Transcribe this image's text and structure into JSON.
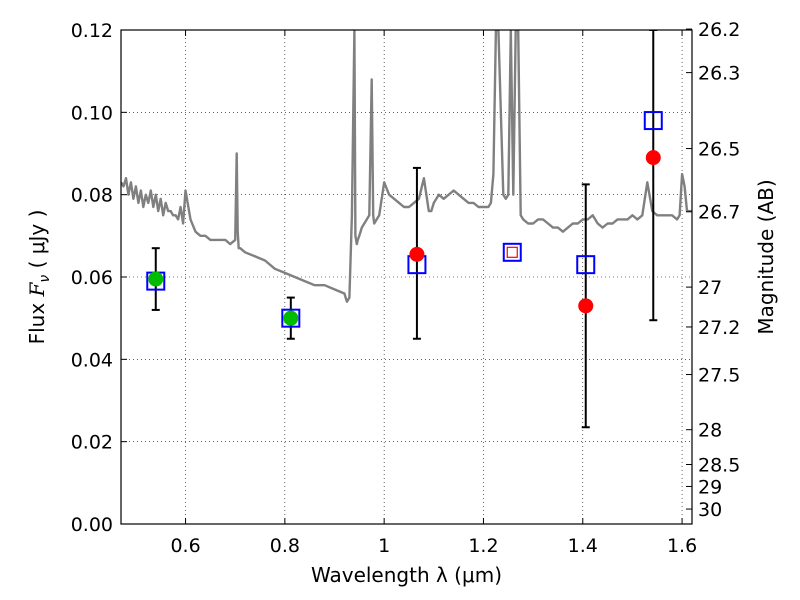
{
  "chart_data": {
    "type": "scatter",
    "xlabel": "Wavelength  λ (μm)",
    "ylabel": "Flux  F_ν  ( μJy )",
    "ylabel_parts": {
      "prefix": "Flux  ",
      "symbol": "F",
      "subscript": "ν",
      "suffix": "  (  μJy )"
    },
    "y2label": "Magnitude (AB)",
    "xlim": [
      0.47,
      1.62
    ],
    "ylim": [
      0.0,
      0.12
    ],
    "x_ticks": [
      0.6,
      0.8,
      1.0,
      1.2,
      1.4,
      1.6
    ],
    "x_tick_labels": [
      "0.6",
      "0.8",
      "1",
      "1.2",
      "1.4",
      "1.6"
    ],
    "y_ticks": [
      0.0,
      0.02,
      0.04,
      0.06,
      0.08,
      0.1,
      0.12
    ],
    "y_tick_labels": [
      "0.00",
      "0.02",
      "0.04",
      "0.06",
      "0.08",
      "0.10",
      "0.12"
    ],
    "y2_ticks": [
      {
        "label": "26.2",
        "mag": 26.2
      },
      {
        "label": "26.3",
        "mag": 26.3
      },
      {
        "label": "26.5",
        "mag": 26.5
      },
      {
        "label": "26.7",
        "mag": 26.7
      },
      {
        "label": "27",
        "mag": 27.0
      },
      {
        "label": "27.2",
        "mag": 27.2
      },
      {
        "label": "27.5",
        "mag": 27.5
      },
      {
        "label": "28",
        "mag": 28.0
      },
      {
        "label": "28.5",
        "mag": 28.5
      },
      {
        "label": "29",
        "mag": 29.0
      },
      {
        "label": "30",
        "mag": 30.0
      }
    ],
    "grid": true,
    "colors": {
      "model": "#808080",
      "observed": "#0000ff",
      "detection": "#00bb00",
      "prediction": "#ff0000",
      "errorbar": "#000000",
      "grid": "#000000"
    },
    "series": [
      {
        "name": "model spectrum",
        "kind": "line",
        "x": [
          0.47,
          0.475,
          0.48,
          0.485,
          0.49,
          0.495,
          0.5,
          0.505,
          0.51,
          0.515,
          0.52,
          0.525,
          0.53,
          0.535,
          0.54,
          0.545,
          0.55,
          0.555,
          0.56,
          0.565,
          0.57,
          0.575,
          0.58,
          0.585,
          0.59,
          0.595,
          0.6,
          0.61,
          0.62,
          0.63,
          0.64,
          0.65,
          0.66,
          0.67,
          0.68,
          0.69,
          0.7,
          0.703,
          0.705,
          0.707,
          0.71,
          0.72,
          0.74,
          0.76,
          0.78,
          0.8,
          0.82,
          0.84,
          0.86,
          0.88,
          0.9,
          0.92,
          0.925,
          0.93,
          0.935,
          0.94,
          0.942,
          0.945,
          0.947,
          0.95,
          0.955,
          0.96,
          0.965,
          0.97,
          0.975,
          0.978,
          0.98,
          0.985,
          0.99,
          1.0,
          1.01,
          1.02,
          1.03,
          1.04,
          1.05,
          1.06,
          1.07,
          1.08,
          1.09,
          1.095,
          1.1,
          1.11,
          1.12,
          1.13,
          1.14,
          1.15,
          1.16,
          1.17,
          1.18,
          1.19,
          1.2,
          1.21,
          1.215,
          1.22,
          1.225,
          1.23,
          1.24,
          1.245,
          1.25,
          1.255,
          1.26,
          1.265,
          1.27,
          1.275,
          1.28,
          1.29,
          1.3,
          1.31,
          1.32,
          1.33,
          1.34,
          1.35,
          1.36,
          1.37,
          1.38,
          1.39,
          1.4,
          1.41,
          1.42,
          1.43,
          1.44,
          1.45,
          1.46,
          1.47,
          1.48,
          1.49,
          1.5,
          1.51,
          1.52,
          1.53,
          1.54,
          1.55,
          1.56,
          1.57,
          1.58,
          1.59,
          1.595,
          1.6,
          1.605,
          1.61,
          1.62
        ],
        "y": [
          0.083,
          0.082,
          0.084,
          0.08,
          0.083,
          0.079,
          0.082,
          0.078,
          0.081,
          0.077,
          0.08,
          0.078,
          0.081,
          0.077,
          0.08,
          0.076,
          0.079,
          0.075,
          0.078,
          0.076,
          0.076,
          0.075,
          0.075,
          0.074,
          0.077,
          0.073,
          0.081,
          0.074,
          0.071,
          0.07,
          0.07,
          0.069,
          0.069,
          0.069,
          0.069,
          0.068,
          0.069,
          0.09,
          0.071,
          0.067,
          0.067,
          0.066,
          0.065,
          0.064,
          0.062,
          0.061,
          0.06,
          0.059,
          0.058,
          0.058,
          0.057,
          0.056,
          0.054,
          0.055,
          0.075,
          0.12,
          0.07,
          0.068,
          0.069,
          0.07,
          0.072,
          0.073,
          0.074,
          0.075,
          0.108,
          0.075,
          0.073,
          0.074,
          0.075,
          0.083,
          0.08,
          0.079,
          0.078,
          0.077,
          0.077,
          0.078,
          0.079,
          0.084,
          0.076,
          0.076,
          0.078,
          0.08,
          0.079,
          0.08,
          0.081,
          0.08,
          0.079,
          0.078,
          0.078,
          0.077,
          0.077,
          0.077,
          0.078,
          0.085,
          0.12,
          0.12,
          0.08,
          0.079,
          0.08,
          0.12,
          0.08,
          0.12,
          0.12,
          0.075,
          0.074,
          0.073,
          0.073,
          0.074,
          0.074,
          0.073,
          0.072,
          0.072,
          0.071,
          0.072,
          0.073,
          0.073,
          0.074,
          0.074,
          0.075,
          0.073,
          0.072,
          0.073,
          0.073,
          0.074,
          0.074,
          0.074,
          0.075,
          0.074,
          0.075,
          0.083,
          0.076,
          0.075,
          0.075,
          0.075,
          0.075,
          0.074,
          0.075,
          0.085,
          0.082,
          0.076,
          0.076
        ]
      },
      {
        "name": "observed (blue squares)",
        "kind": "marker",
        "marker": "open-square",
        "points": [
          {
            "x": 0.54,
            "y": 0.059,
            "yerr_low": 0.052,
            "yerr_high": 0.067
          },
          {
            "x": 0.812,
            "y": 0.05,
            "yerr_low": 0.045,
            "yerr_high": 0.055
          },
          {
            "x": 1.066,
            "y": 0.063,
            "yerr_low": 0.045,
            "yerr_high": 0.0865
          },
          {
            "x": 1.258,
            "y": 0.066
          },
          {
            "x": 1.406,
            "y": 0.063,
            "yerr_low": 0.0235,
            "yerr_high": 0.0825
          },
          {
            "x": 1.542,
            "y": 0.098,
            "yerr_low": 0.0495,
            "yerr_high": 0.12
          }
        ]
      },
      {
        "name": "green points",
        "kind": "marker",
        "marker": "filled-circle",
        "points": [
          {
            "x": 0.54,
            "y": 0.0595
          },
          {
            "x": 0.812,
            "y": 0.05
          }
        ]
      },
      {
        "name": "red points",
        "kind": "marker",
        "marker": "filled-circle",
        "points": [
          {
            "x": 1.066,
            "y": 0.0655
          },
          {
            "x": 1.406,
            "y": 0.053
          },
          {
            "x": 1.542,
            "y": 0.089
          }
        ]
      },
      {
        "name": "red open square",
        "kind": "marker",
        "marker": "small-open-square",
        "points": [
          {
            "x": 1.258,
            "y": 0.066
          }
        ]
      }
    ]
  }
}
